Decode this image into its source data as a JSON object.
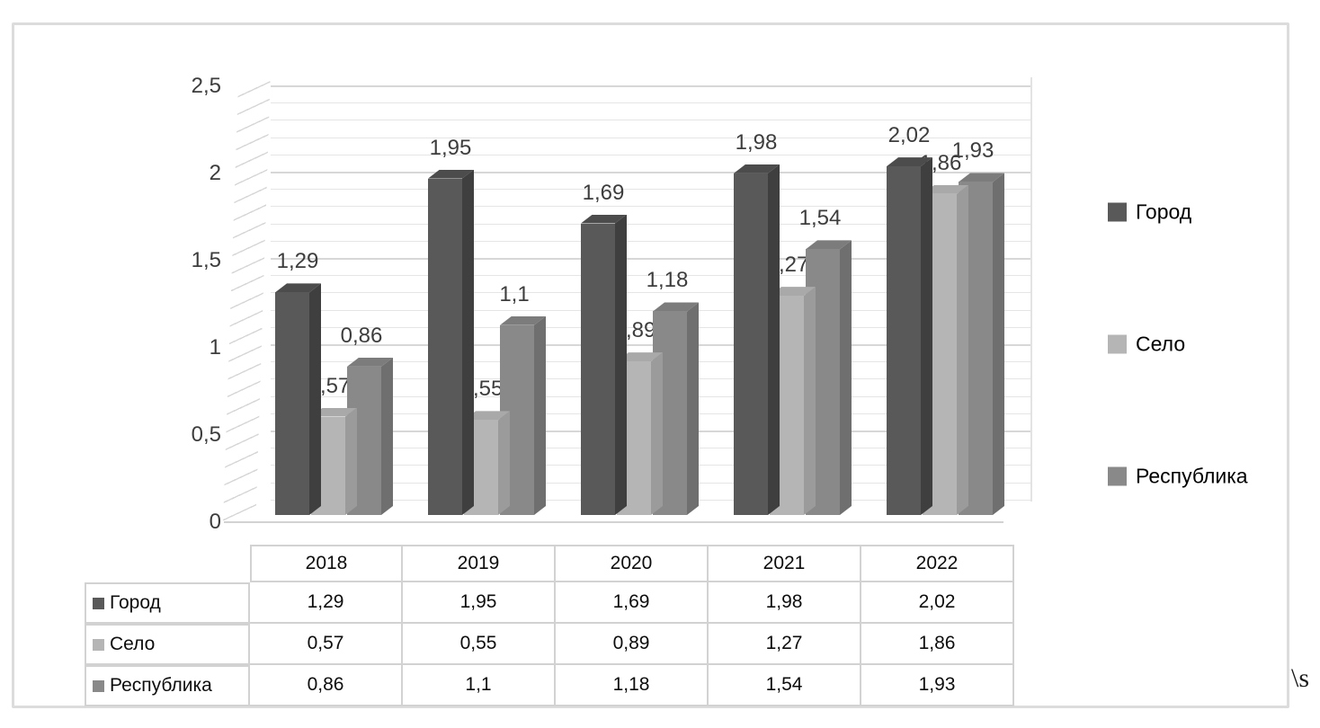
{
  "chart_data": {
    "type": "bar",
    "variant": "3d-clustered-column",
    "title": "",
    "categories": [
      "2018",
      "2019",
      "2020",
      "2021",
      "2022"
    ],
    "series": [
      {
        "key": "gorod",
        "name": "Город",
        "values": [
          1.29,
          1.95,
          1.69,
          1.98,
          2.02
        ],
        "labels": [
          "1,29",
          "1,95",
          "1,69",
          "1,98",
          "2,02"
        ],
        "color_front": "#595959",
        "color_side": "#3f3f3f",
        "color_top": "#4c4c4c"
      },
      {
        "key": "selo",
        "name": "Село",
        "values": [
          0.57,
          0.55,
          0.89,
          1.27,
          1.86
        ],
        "labels": [
          "0,57",
          "0,55",
          "0,89",
          "1,27",
          "1,86"
        ],
        "color_front": "#b5b5b5",
        "color_side": "#9b9b9b",
        "color_top": "#a9a9a9"
      },
      {
        "key": "respublika",
        "name": "Республика",
        "values": [
          0.86,
          1.1,
          1.18,
          1.54,
          1.93
        ],
        "labels": [
          "0,86",
          "1,1",
          "1,18",
          "1,54",
          "1,93"
        ],
        "color_front": "#898989",
        "color_side": "#6f6f6f",
        "color_top": "#7c7c7c"
      }
    ],
    "y_axis": {
      "values": [
        0,
        0.5,
        1,
        1.5,
        2,
        2.5
      ],
      "labels": [
        "0",
        "0,5",
        "1",
        "1,5",
        "2",
        "2,5"
      ],
      "min": 0,
      "max": 2.5,
      "minor_grid_step": 0.1
    },
    "grid": "on",
    "legend_position": "right",
    "data_table_shown": true
  },
  "artifacts": {
    "field_code": "\\s"
  }
}
